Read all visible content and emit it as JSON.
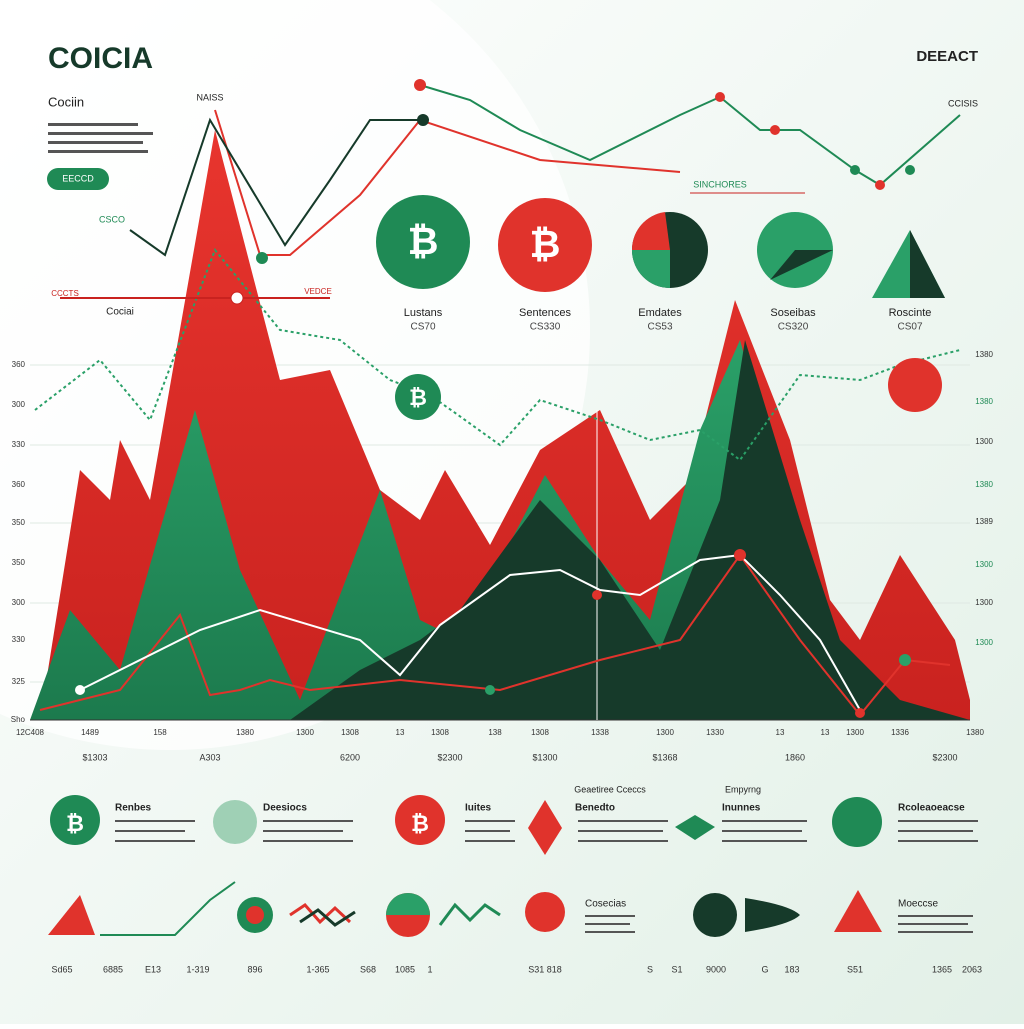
{
  "header": {
    "title": "COICIA",
    "right_label": "DEEACT",
    "subtitle": "Cociin",
    "button": "EECCD",
    "peak_label": "NAISS",
    "top_right_label": "CCISIS",
    "badge": "SINCHORES",
    "left_small": "CSCO",
    "left_marker": "CCCTS",
    "left_label": "Cociai",
    "left_marker_right": "VEDCE"
  },
  "symbol": "₿",
  "icons": [
    {
      "label": "Lustans",
      "value": "CS70"
    },
    {
      "label": "Sentences",
      "value": "CS330"
    },
    {
      "label": "Emdates",
      "value": "CS53"
    },
    {
      "label": "Soseibas",
      "value": "CS320"
    },
    {
      "label": "Roscinte",
      "value": "CS07"
    }
  ],
  "chart": {
    "y_left": [
      "360",
      "300",
      "330",
      "360",
      "350",
      "350",
      "300",
      "330",
      "325",
      "Sho"
    ],
    "y_right": [
      "1380",
      "1380",
      "1300",
      "1380",
      "1389",
      "1300",
      "1300",
      "1300"
    ],
    "x_labels": [
      "12C408",
      "1489",
      "158",
      "1380",
      "1300",
      "1308",
      "13",
      "1308",
      "138",
      "1308",
      "1338",
      "1300",
      "1330",
      "13",
      "13",
      "1300",
      "1336",
      "1380"
    ],
    "x_values": [
      "$1303",
      "A303",
      "6200",
      "$2300",
      "$1300",
      "$1368",
      "1860",
      "$2300"
    ]
  },
  "features": [
    "Renbes",
    "Deesiocs",
    "Iuites",
    "Benedto",
    "Inunnes",
    "Rcoleaoeacse"
  ],
  "feature_headers": [
    "Geaetiree Cceccs",
    "Empyrng"
  ],
  "bottom": {
    "titles": [
      "Cosecias",
      "Moeccse"
    ],
    "numbers": [
      "Sd65",
      "6885",
      "E13",
      "1-319",
      "896",
      "1-365",
      "S68",
      "1085",
      "1",
      "S31 818",
      "S",
      "S1",
      "9000",
      "G",
      "183",
      "S51",
      "1365",
      "2063"
    ]
  }
}
